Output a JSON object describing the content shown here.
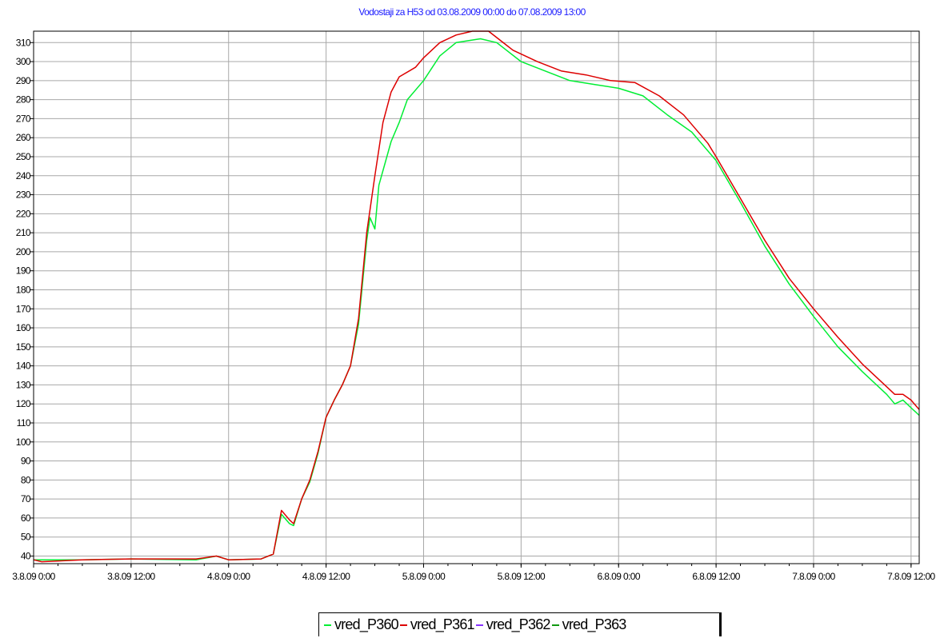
{
  "chart_data": {
    "type": "line",
    "title": "Vodostaji za H53 od 03.08.2009 00:00 do 07.08.2009 13:00",
    "xlabel": "",
    "ylabel": "",
    "x_range_hours": [
      0,
      109
    ],
    "ylim": [
      36,
      316
    ],
    "y_ticks": [
      40,
      50,
      60,
      70,
      80,
      90,
      100,
      110,
      120,
      130,
      140,
      150,
      160,
      170,
      180,
      190,
      200,
      210,
      220,
      230,
      240,
      250,
      260,
      270,
      280,
      290,
      300,
      310
    ],
    "x_ticks": [
      {
        "label": "3.8.09 0:00",
        "hour": 0
      },
      {
        "label": "3.8.09 12:00",
        "hour": 12
      },
      {
        "label": "4.8.09 0:00",
        "hour": 24
      },
      {
        "label": "4.8.09 12:00",
        "hour": 36
      },
      {
        "label": "5.8.09 0:00",
        "hour": 48
      },
      {
        "label": "5.8.09 12:00",
        "hour": 60
      },
      {
        "label": "6.8.09 0:00",
        "hour": 72
      },
      {
        "label": "6.8.09 12:00",
        "hour": 84
      },
      {
        "label": "7.8.09 0:00",
        "hour": 96
      },
      {
        "label": "7.8.09 12:00",
        "hour": 108
      }
    ],
    "grid": true,
    "legend_position": "bottom-center",
    "series": [
      {
        "name": "vred_P360",
        "color": "#00ee33",
        "points": [
          [
            0,
            38
          ],
          [
            6,
            38
          ],
          [
            12,
            38.5
          ],
          [
            20,
            38
          ],
          [
            22.5,
            40
          ],
          [
            24,
            38
          ],
          [
            28,
            38.5
          ],
          [
            29.5,
            41
          ],
          [
            30.5,
            62
          ],
          [
            31.5,
            57
          ],
          [
            32,
            56
          ],
          [
            33,
            70
          ],
          [
            34,
            79
          ],
          [
            35,
            94
          ],
          [
            36,
            113
          ],
          [
            37,
            122
          ],
          [
            38,
            130
          ],
          [
            39,
            140
          ],
          [
            40,
            162
          ],
          [
            41,
            206
          ],
          [
            41.4,
            218
          ],
          [
            42,
            212
          ],
          [
            42.5,
            235
          ],
          [
            44,
            258
          ],
          [
            45,
            268
          ],
          [
            46,
            280
          ],
          [
            48,
            290
          ],
          [
            50,
            303
          ],
          [
            52,
            310
          ],
          [
            55,
            312
          ],
          [
            57,
            310
          ],
          [
            60,
            300
          ],
          [
            63,
            295
          ],
          [
            66,
            290
          ],
          [
            69,
            288
          ],
          [
            72,
            286
          ],
          [
            75,
            282
          ],
          [
            78,
            272
          ],
          [
            81,
            263
          ],
          [
            84,
            248
          ],
          [
            87,
            226
          ],
          [
            90,
            203
          ],
          [
            93,
            183
          ],
          [
            96,
            166
          ],
          [
            99,
            150
          ],
          [
            102,
            137
          ],
          [
            105,
            125
          ],
          [
            106,
            120
          ],
          [
            107,
            122
          ],
          [
            108,
            118
          ],
          [
            109,
            114
          ]
        ]
      },
      {
        "name": "vred_P361",
        "color": "#dd0000",
        "points": [
          [
            0,
            38
          ],
          [
            1,
            37
          ],
          [
            6,
            38
          ],
          [
            12,
            38.5
          ],
          [
            20,
            38.5
          ],
          [
            22.5,
            40
          ],
          [
            24,
            38
          ],
          [
            28,
            38.5
          ],
          [
            29.5,
            41
          ],
          [
            30.5,
            64
          ],
          [
            31.5,
            59
          ],
          [
            32,
            57
          ],
          [
            33,
            70
          ],
          [
            34,
            80
          ],
          [
            35,
            95
          ],
          [
            36,
            113
          ],
          [
            37,
            122
          ],
          [
            38,
            130
          ],
          [
            39,
            140
          ],
          [
            40,
            165
          ],
          [
            41,
            210
          ],
          [
            42,
            240
          ],
          [
            43,
            268
          ],
          [
            44,
            284
          ],
          [
            45,
            292
          ],
          [
            47,
            297
          ],
          [
            48,
            302
          ],
          [
            50,
            310
          ],
          [
            52,
            314
          ],
          [
            54,
            316
          ],
          [
            56,
            316
          ],
          [
            59,
            306
          ],
          [
            62,
            300
          ],
          [
            65,
            295
          ],
          [
            68,
            293
          ],
          [
            71,
            290
          ],
          [
            74,
            289
          ],
          [
            77,
            282
          ],
          [
            80,
            272
          ],
          [
            83,
            257
          ],
          [
            84,
            250
          ],
          [
            87,
            228
          ],
          [
            90,
            206
          ],
          [
            93,
            186
          ],
          [
            96,
            170
          ],
          [
            99,
            155
          ],
          [
            102,
            141
          ],
          [
            105,
            129
          ],
          [
            106,
            125
          ],
          [
            107,
            125
          ],
          [
            108,
            122
          ],
          [
            109,
            117
          ]
        ]
      },
      {
        "name": "vred_P362",
        "color": "#8833ff",
        "points": []
      },
      {
        "name": "vred_P363",
        "color": "#119911",
        "points": []
      }
    ]
  }
}
